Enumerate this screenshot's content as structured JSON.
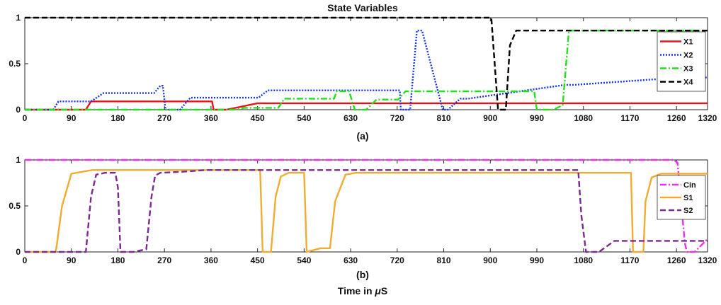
{
  "figure": {
    "title": "State Variables",
    "xlabel_prefix": "Time in ",
    "xlabel_mu": "μ",
    "xlabel_suffix": "S",
    "colors": {
      "X1": "#e8141a",
      "X2": "#1a33e6",
      "X3": "#22e01b",
      "X4": "#000000",
      "Cin": "#ee2fee",
      "S1": "#f0ab30",
      "S2": "#7b2a8f"
    }
  },
  "chart_data": [
    {
      "type": "line",
      "sublabel": "(a)",
      "xlim": [
        0,
        1320
      ],
      "ylim": [
        0,
        1
      ],
      "xticks": [
        0,
        90,
        180,
        270,
        360,
        450,
        540,
        630,
        720,
        810,
        900,
        990,
        1080,
        1170,
        1260,
        1320
      ],
      "yticks": [
        0,
        0.5,
        1
      ],
      "ytick_labels": [
        "0",
        "0.5",
        "1"
      ],
      "grid": false,
      "legend_position": "right",
      "series": [
        {
          "name": "X1",
          "style": "solid",
          "color": "#e8141a",
          "x": [
            0,
            118,
            128,
            362,
            365,
            390,
            450,
            1320
          ],
          "y": [
            0,
            0,
            0.09,
            0.09,
            0,
            0,
            0.07,
            0.07
          ]
        },
        {
          "name": "X2",
          "style": "dotted",
          "color": "#1a33e6",
          "x": [
            0,
            55,
            65,
            128,
            152,
            250,
            262,
            267,
            272,
            300,
            320,
            452,
            470,
            725,
            727,
            745,
            758,
            768,
            808,
            818,
            842,
            857,
            1045,
            1062,
            1270,
            1280,
            1320
          ],
          "y": [
            0,
            0,
            0.09,
            0.09,
            0.18,
            0.18,
            0.26,
            0.26,
            0,
            0,
            0.13,
            0.13,
            0.21,
            0.21,
            0,
            0,
            0.86,
            0.86,
            0,
            0,
            0.12,
            0.12,
            0.27,
            0.27,
            0.35,
            0.35,
            0.35
          ]
        },
        {
          "name": "X3",
          "style": "dashdot",
          "color": "#22e01b",
          "x": [
            0,
            405,
            425,
            490,
            502,
            598,
            603,
            627,
            638,
            660,
            680,
            722,
            736,
            760,
            770,
            985,
            990,
            1022,
            1040,
            1052,
            1320
          ],
          "y": [
            0,
            0,
            0.02,
            0.02,
            0.12,
            0.12,
            0.2,
            0.2,
            0,
            0,
            0.11,
            0.11,
            0.2,
            0.2,
            0.2,
            0.2,
            0,
            0,
            0.05,
            0.86,
            0.86
          ]
        },
        {
          "name": "X4",
          "style": "dashed",
          "color": "#000000",
          "x": [
            0,
            902,
            915,
            930,
            938,
            950,
            1320
          ],
          "y": [
            1,
            1,
            0,
            0,
            0.7,
            0.86,
            0.86
          ]
        }
      ]
    },
    {
      "type": "line",
      "sublabel": "(b)",
      "xlim": [
        0,
        1320
      ],
      "ylim": [
        0,
        1
      ],
      "xticks": [
        0,
        90,
        180,
        270,
        360,
        450,
        540,
        630,
        720,
        810,
        900,
        990,
        1080,
        1170,
        1260,
        1320
      ],
      "yticks": [
        0,
        0.5,
        1
      ],
      "ytick_labels": [
        "0",
        "0.5",
        "1"
      ],
      "grid": false,
      "legend_position": "right",
      "series": [
        {
          "name": "Cin",
          "style": "dashdot",
          "color": "#ee2fee",
          "x": [
            0,
            1255,
            1262,
            1276,
            1280,
            1295,
            1320
          ],
          "y": [
            1,
            1,
            0.97,
            0.1,
            0,
            0,
            0.14
          ]
        },
        {
          "name": "S1",
          "style": "solid",
          "color": "#f0ab30",
          "x": [
            0,
            60,
            72,
            90,
            130,
            455,
            460,
            476,
            485,
            495,
            510,
            540,
            545,
            572,
            590,
            600,
            620,
            640,
            1172,
            1176,
            1196,
            1200,
            1212,
            1230,
            1320
          ],
          "y": [
            0,
            0,
            0.5,
            0.85,
            0.89,
            0.89,
            0,
            0,
            0.6,
            0.82,
            0.86,
            0.86,
            0,
            0.04,
            0.04,
            0.55,
            0.84,
            0.86,
            0.86,
            0,
            0,
            0.55,
            0.81,
            0.85,
            0.85
          ]
        },
        {
          "name": "S2",
          "style": "dashed",
          "color": "#7b2a8f",
          "x": [
            0,
            118,
            128,
            138,
            155,
            175,
            180,
            185,
            190,
            210,
            235,
            245,
            252,
            262,
            300,
            350,
            1070,
            1076,
            1085,
            1110,
            1140,
            1320
          ],
          "y": [
            0,
            0,
            0.6,
            0.84,
            0.86,
            0.86,
            0.7,
            0,
            0,
            0,
            0.03,
            0.6,
            0.83,
            0.86,
            0.87,
            0.89,
            0.89,
            0.4,
            0,
            0,
            0.12,
            0.12
          ]
        }
      ]
    }
  ]
}
